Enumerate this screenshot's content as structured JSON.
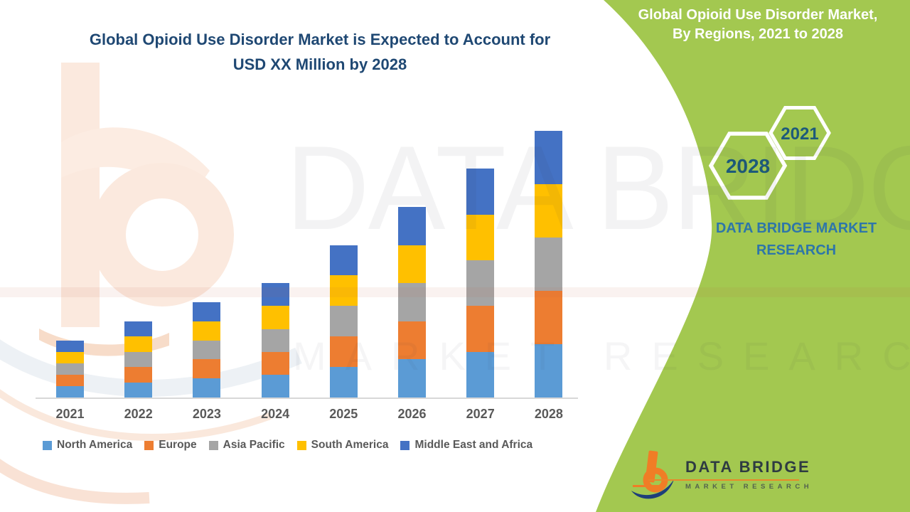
{
  "title": {
    "line1": "Global Opioid Use Disorder Market is Expected to Account for",
    "line2": "USD XX Million by 2028"
  },
  "panel": {
    "green_color": "#a3c850",
    "header_line1": "Global Opioid Use Disorder Market,",
    "header_line2": "By Regions, 2021 to 2028",
    "hex_small_year": "2021",
    "hex_large_year": "2028",
    "brand_line1": "DATA BRIDGE MARKET",
    "brand_line2": "RESEARCH"
  },
  "watermark": {
    "text_large": "DATA BRIDGE",
    "text_small": "MARKET RESEARCH"
  },
  "logo": {
    "name": "DATA BRIDGE",
    "sub": "MARKET RESEARCH",
    "orange": "#f07d26",
    "navy": "#1e3f7a"
  },
  "chart_data": {
    "type": "bar",
    "stacked": true,
    "title": "Global Opioid Use Disorder Market is Expected to Account for USD XX Million by 2028",
    "xlabel": "",
    "ylabel": "",
    "value_labels_shown": false,
    "values_note": "Axis/value labels are not shown in the figure (values are 'USD XX Million'); series values below are relative heights estimated from the bars. Each year splits into five equal regional segments.",
    "categories": [
      "2021",
      "2022",
      "2023",
      "2024",
      "2025",
      "2026",
      "2027",
      "2028"
    ],
    "totals_relative": [
      3,
      4,
      5,
      6,
      8,
      10,
      12,
      14
    ],
    "series": [
      {
        "name": "North America",
        "color": "#5B9BD5",
        "values": [
          0.6,
          0.8,
          1.0,
          1.2,
          1.6,
          2.0,
          2.4,
          2.8
        ]
      },
      {
        "name": "Europe",
        "color": "#ED7D31",
        "values": [
          0.6,
          0.8,
          1.0,
          1.2,
          1.6,
          2.0,
          2.4,
          2.8
        ]
      },
      {
        "name": "Asia Pacific",
        "color": "#A5A5A5",
        "values": [
          0.6,
          0.8,
          1.0,
          1.2,
          1.6,
          2.0,
          2.4,
          2.8
        ]
      },
      {
        "name": "South America",
        "color": "#FFC000",
        "values": [
          0.6,
          0.8,
          1.0,
          1.2,
          1.6,
          2.0,
          2.4,
          2.8
        ]
      },
      {
        "name": "Middle East and Africa",
        "color": "#4472C4",
        "values": [
          0.6,
          0.8,
          1.0,
          1.2,
          1.6,
          2.0,
          2.4,
          2.8
        ]
      }
    ],
    "legend_position": "bottom",
    "grid": false
  }
}
